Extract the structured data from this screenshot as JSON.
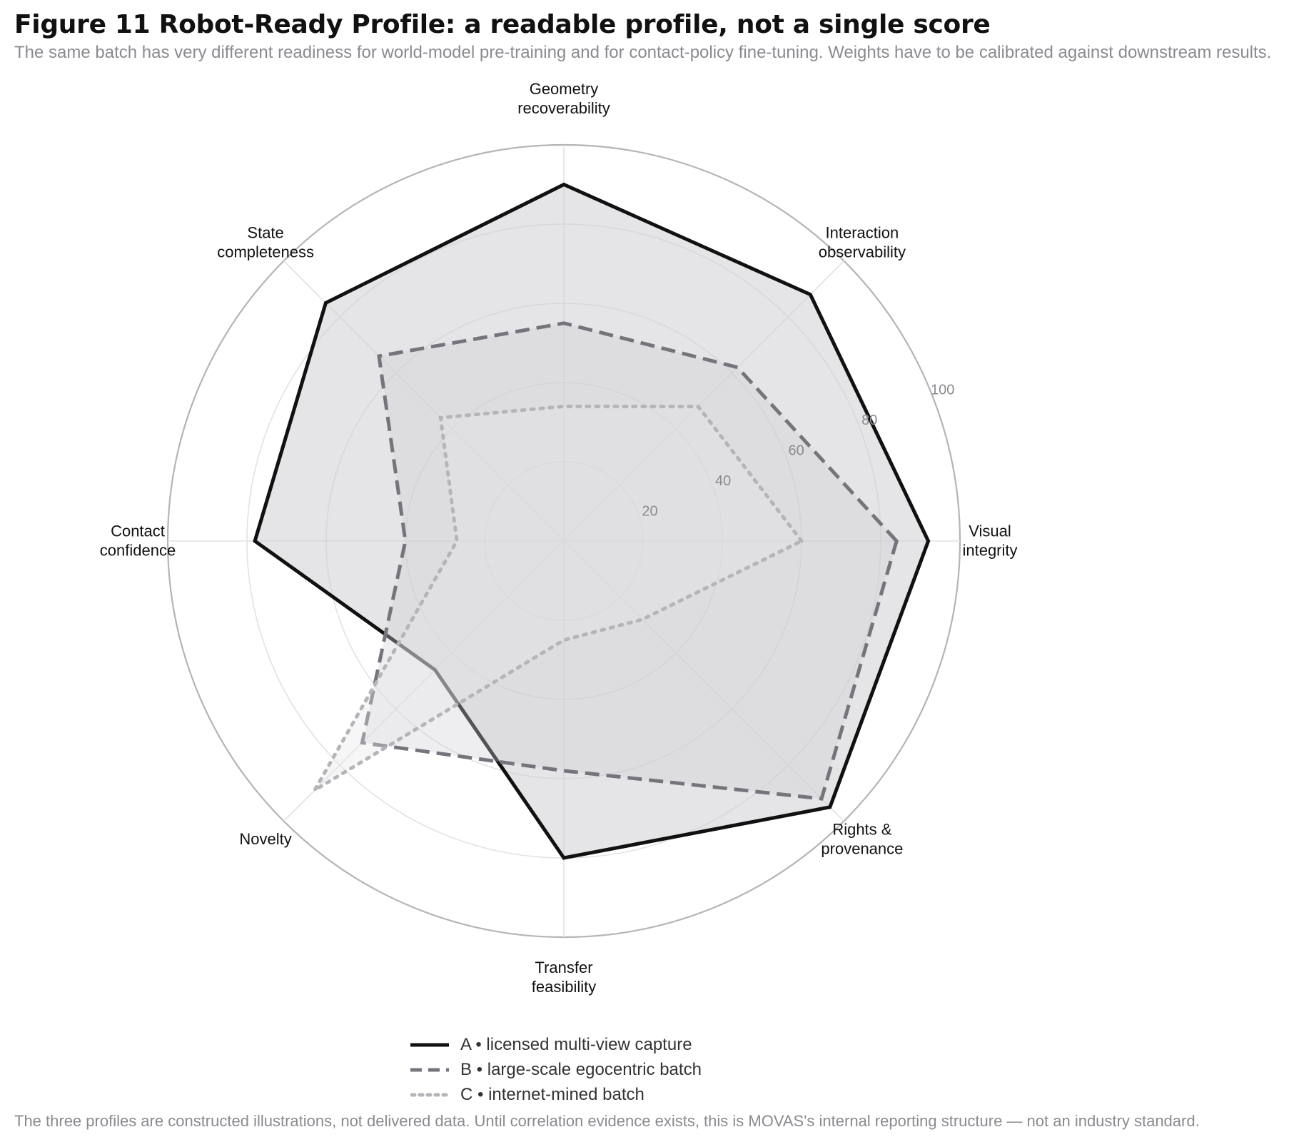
{
  "figure": {
    "title": "Figure 11  Robot-Ready Profile: a readable profile, not a single score",
    "subtitle": "The same batch has very different readiness for world-model pre-training and for contact-policy fine-tuning. Weights have to be calibrated against downstream results.",
    "footnote": "The three profiles are constructed illustrations, not delivered data. Until correlation evidence exists, this is MOVAS's internal reporting structure — not an industry standard."
  },
  "chart_data": {
    "type": "radar",
    "title": "Figure 11  Robot-Ready Profile: a readable profile, not a single score",
    "axes": [
      [
        "Visual",
        "integrity"
      ],
      [
        "Interaction",
        "observability"
      ],
      [
        "Geometry",
        "recoverability"
      ],
      [
        "State",
        "completeness"
      ],
      [
        "Contact",
        "confidence"
      ],
      [
        "Novelty"
      ],
      [
        "Transfer",
        "feasibility"
      ],
      [
        "Rights &",
        "provenance"
      ]
    ],
    "range": [
      0,
      100
    ],
    "ticks": [
      20,
      40,
      60,
      80,
      100
    ],
    "grid": true,
    "legend_position": "bottom-center",
    "series": [
      {
        "name": "A • licensed multi-view capture",
        "color": "#111111",
        "fill": "#d0d0d4",
        "fill_opacity": 0.55,
        "style": "solid",
        "values": [
          92,
          88,
          90,
          85,
          78,
          46,
          80,
          95
        ]
      },
      {
        "name": "B • large-scale egocentric batch",
        "color": "#74757c",
        "fill": "#cfcfd3",
        "fill_opacity": 0.35,
        "style": "dashed",
        "values": [
          84,
          62,
          55,
          66,
          40,
          72,
          58,
          92
        ]
      },
      {
        "name": "C • internet-mined batch",
        "color": "#b4b4b9",
        "fill": "#e4e4e7",
        "fill_opacity": 0.35,
        "style": "dotted",
        "values": [
          60,
          48,
          34,
          44,
          27,
          89,
          25,
          28
        ]
      }
    ]
  }
}
